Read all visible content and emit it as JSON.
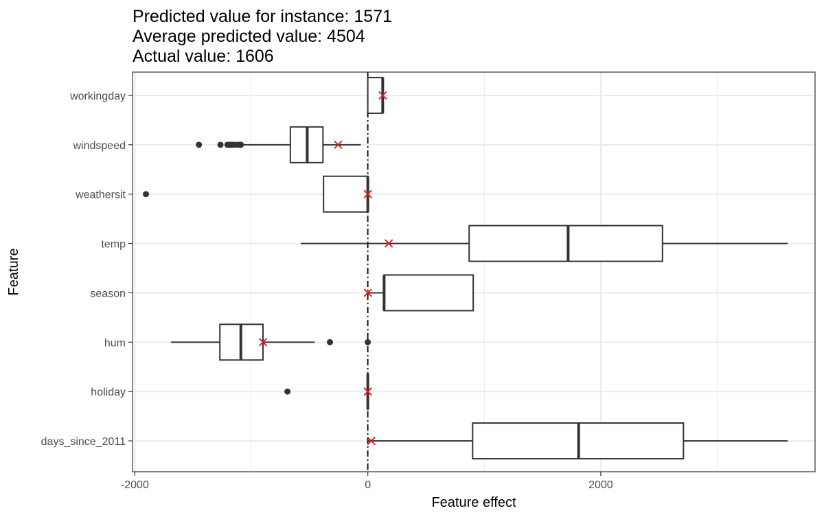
{
  "chart_data": {
    "type": "boxplot",
    "title_lines": [
      "Predicted value for instance: 1571",
      "Average predicted value: 4504",
      "Actual value: 1606"
    ],
    "xlabel": "Feature effect",
    "ylabel": "Feature",
    "xlim": [
      -2020,
      3840
    ],
    "x_ticks": [
      -2000,
      0,
      2000
    ],
    "x_tick_labels": [
      "-2000",
      "0",
      "2000"
    ],
    "minor_gridlines": [
      -1000,
      1000,
      3000
    ],
    "grid": true,
    "reference_line_x": 0,
    "categories": [
      "workingday",
      "windspeed",
      "weathersit",
      "temp",
      "season",
      "hum",
      "holiday",
      "days_since_2011"
    ],
    "boxes": [
      {
        "feature": "workingday",
        "whisker_low": 0,
        "q1": 0,
        "median": 128,
        "q3": 128,
        "whisker_high": 128,
        "outliers": [],
        "instance_effect": 128
      },
      {
        "feature": "windspeed",
        "whisker_low": -1080,
        "q1": -665,
        "median": -520,
        "q3": -385,
        "whisker_high": -60,
        "outliers": [
          -1450,
          -1265,
          -1205,
          -1185,
          -1165,
          -1140,
          -1110,
          -1090
        ],
        "instance_effect": -255
      },
      {
        "feature": "weathersit",
        "whisker_low": -380,
        "q1": -380,
        "median": 0,
        "q3": 0,
        "whisker_high": 0,
        "outliers": [
          -1905
        ],
        "instance_effect": 0
      },
      {
        "feature": "temp",
        "whisker_low": -575,
        "q1": 870,
        "median": 1720,
        "q3": 2530,
        "whisker_high": 3605,
        "outliers": [],
        "instance_effect": 180
      },
      {
        "feature": "season",
        "whisker_low": 0,
        "q1": 140,
        "median": 140,
        "q3": 905,
        "whisker_high": 905,
        "outliers": [],
        "instance_effect": 0
      },
      {
        "feature": "hum",
        "whisker_low": -1690,
        "q1": -1270,
        "median": -1090,
        "q3": -900,
        "whisker_high": -455,
        "outliers": [
          -325,
          0
        ],
        "instance_effect": -900
      },
      {
        "feature": "holiday",
        "whisker_low": 0,
        "q1": 0,
        "median": 0,
        "q3": 0,
        "whisker_high": 0,
        "outliers": [
          -690
        ],
        "instance_effect": 0
      },
      {
        "feature": "days_since_2011",
        "whisker_low": 0,
        "q1": 900,
        "median": 1810,
        "q3": 2710,
        "whisker_high": 3605,
        "outliers": [],
        "instance_effect": 30
      }
    ],
    "colors": {
      "box_stroke": "#333333",
      "box_fill": "#ffffff",
      "outlier": "#333333",
      "instance_marker": "#e41a1c",
      "grid": "#ebebeb",
      "panel_border": "#333333",
      "reference_line": "#000000"
    }
  }
}
